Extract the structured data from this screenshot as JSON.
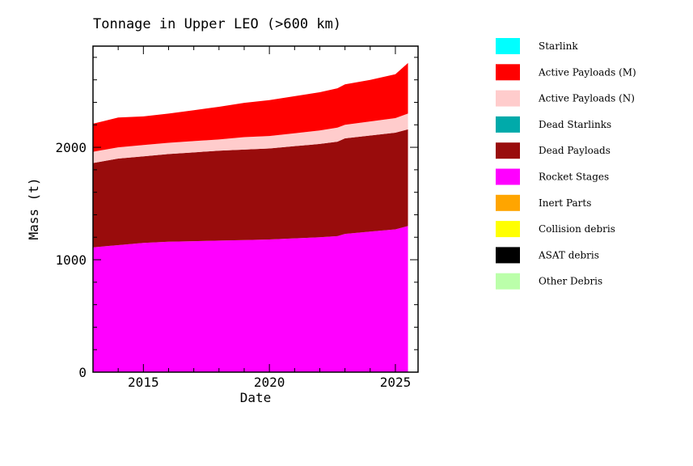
{
  "chart_data": {
    "type": "area",
    "title": "Tonnage in Upper LEO (>600 km)",
    "xlabel": "Date",
    "ylabel": "Mass (t)",
    "xlim": [
      2013.0,
      2025.9
    ],
    "ylim": [
      0,
      2900
    ],
    "xticks": [
      2015,
      2020,
      2025
    ],
    "yticks": [
      0,
      1000,
      2000
    ],
    "x": [
      2013.0,
      2014.0,
      2015.0,
      2016.0,
      2017.0,
      2018.0,
      2019.0,
      2020.0,
      2021.0,
      2022.0,
      2022.7,
      2023.0,
      2024.0,
      2025.0,
      2025.5
    ],
    "series": [
      {
        "name": "Starlink",
        "color": "#00ffff",
        "values": [
          0,
          0,
          0,
          0,
          0,
          0,
          0,
          0,
          0,
          0,
          0,
          0,
          0,
          0,
          0
        ]
      },
      {
        "name": "Active Payloads (M)",
        "color": "#ff0000",
        "values": [
          250,
          265,
          255,
          260,
          275,
          290,
          305,
          320,
          330,
          340,
          350,
          360,
          370,
          390,
          450
        ]
      },
      {
        "name": "Active Payloads (N)",
        "color": "#ffcccc",
        "values": [
          100,
          100,
          100,
          100,
          100,
          100,
          110,
          110,
          115,
          120,
          125,
          120,
          125,
          130,
          140
        ]
      },
      {
        "name": "Dead Starlinks",
        "color": "#00aaaa",
        "values": [
          0,
          0,
          0,
          0,
          0,
          0,
          0,
          0,
          0,
          0,
          0,
          0,
          0,
          0,
          0
        ]
      },
      {
        "name": "Dead Payloads",
        "color": "#990c0c",
        "values": [
          750,
          770,
          770,
          780,
          790,
          800,
          805,
          810,
          820,
          830,
          840,
          850,
          855,
          860,
          860
        ]
      },
      {
        "name": "Rocket Stages",
        "color": "#ff00ff",
        "values": [
          1110,
          1130,
          1150,
          1160,
          1165,
          1170,
          1175,
          1180,
          1190,
          1200,
          1210,
          1230,
          1250,
          1270,
          1300
        ]
      },
      {
        "name": "Inert Parts",
        "color": "#ffa500",
        "values": [
          0,
          0,
          0,
          0,
          0,
          0,
          0,
          0,
          0,
          0,
          0,
          0,
          0,
          0,
          0
        ]
      },
      {
        "name": "Collision debris",
        "color": "#ffff00",
        "values": [
          0,
          0,
          0,
          0,
          0,
          0,
          0,
          0,
          0,
          0,
          0,
          0,
          0,
          0,
          0
        ]
      },
      {
        "name": "ASAT debris",
        "color": "#000000",
        "values": [
          0,
          0,
          0,
          0,
          0,
          0,
          0,
          0,
          0,
          0,
          0,
          0,
          0,
          0,
          0
        ]
      },
      {
        "name": "Other Debris",
        "color": "#bbffaa",
        "values": [
          0,
          0,
          0,
          0,
          0,
          0,
          0,
          0,
          0,
          0,
          0,
          0,
          0,
          0,
          0
        ]
      }
    ],
    "legend_position": "right"
  }
}
